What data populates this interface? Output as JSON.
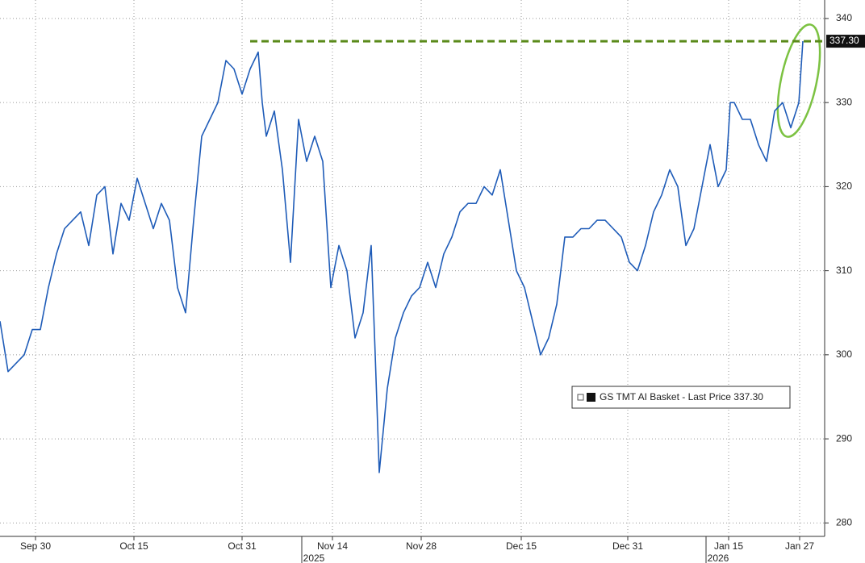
{
  "chart_data": {
    "type": "line",
    "x": [
      0,
      1,
      2,
      3,
      4,
      5,
      6,
      7,
      8,
      9,
      10,
      11,
      12,
      13,
      14,
      15,
      16,
      17,
      18,
      19,
      20,
      21,
      22,
      23,
      24,
      25,
      26,
      27,
      28,
      29,
      30,
      31,
      32,
      32.5,
      33,
      34,
      35,
      36,
      37,
      38,
      39,
      40,
      41,
      42,
      43,
      44,
      45,
      46,
      46.5,
      47,
      48,
      49,
      50,
      51,
      52,
      53,
      54,
      55,
      56,
      57,
      58,
      59,
      60,
      61,
      62,
      63,
      64,
      65,
      66,
      67,
      68,
      69,
      70,
      71,
      72,
      73,
      74,
      75,
      76,
      77,
      78,
      79,
      80,
      81,
      82,
      83,
      84,
      85,
      86,
      87,
      88,
      89,
      90,
      90.5,
      91,
      92,
      93,
      94,
      95,
      96,
      97,
      98,
      99,
      99.5
    ],
    "series": [
      {
        "name": "GS TMT AI Basket - Last Price 337.30",
        "color": "#1f5cb8",
        "values": [
          304,
          298,
          299,
          300,
          303,
          303,
          308,
          312,
          315,
          316,
          317,
          313,
          319,
          320,
          312,
          318,
          316,
          321,
          318,
          315,
          318,
          316,
          308,
          305,
          316,
          326,
          328,
          330,
          335,
          334,
          331,
          334,
          336,
          330,
          326,
          329,
          322,
          311,
          328,
          323,
          326,
          323,
          308,
          313,
          310,
          302,
          305,
          313,
          300,
          286,
          296,
          302,
          305,
          307,
          308,
          311,
          308,
          312,
          314,
          317,
          318,
          318,
          320,
          319,
          322,
          316,
          310,
          308,
          304,
          300,
          302,
          306,
          314,
          314,
          315,
          315,
          316,
          316,
          315,
          314,
          311,
          310,
          313,
          317,
          319,
          322,
          320,
          313,
          315,
          320,
          325,
          320,
          322,
          330,
          330,
          328,
          328,
          325,
          323,
          329,
          330,
          327,
          330,
          337.3
        ]
      }
    ],
    "xlim": [
      0,
      102.2
    ],
    "ylim": [
      278.4,
      342.2
    ],
    "xticks": [
      {
        "value": 4.4,
        "label": "Sep 30"
      },
      {
        "value": 16.6,
        "label": "Oct 15"
      },
      {
        "value": 30,
        "label": "Oct 31"
      },
      {
        "value": 41.2,
        "label": "Nov 14"
      },
      {
        "value": 52.2,
        "label": "Nov 28"
      },
      {
        "value": 64.6,
        "label": "Dec 15"
      },
      {
        "value": 77.8,
        "label": "Dec 31"
      },
      {
        "value": 90.3,
        "label": "Jan 15"
      },
      {
        "value": 99.1,
        "label": "Jan 27"
      }
    ],
    "x_year_labels": [
      {
        "value": 38.9,
        "label": "2025"
      },
      {
        "value": 89,
        "label": "2026"
      }
    ],
    "yticks": [
      280,
      290,
      300,
      310,
      320,
      330,
      340
    ],
    "reference_line": {
      "value": 337.3,
      "label": "337.30",
      "start": 31,
      "color": "#5a8a1a"
    },
    "grid": true
  }
}
